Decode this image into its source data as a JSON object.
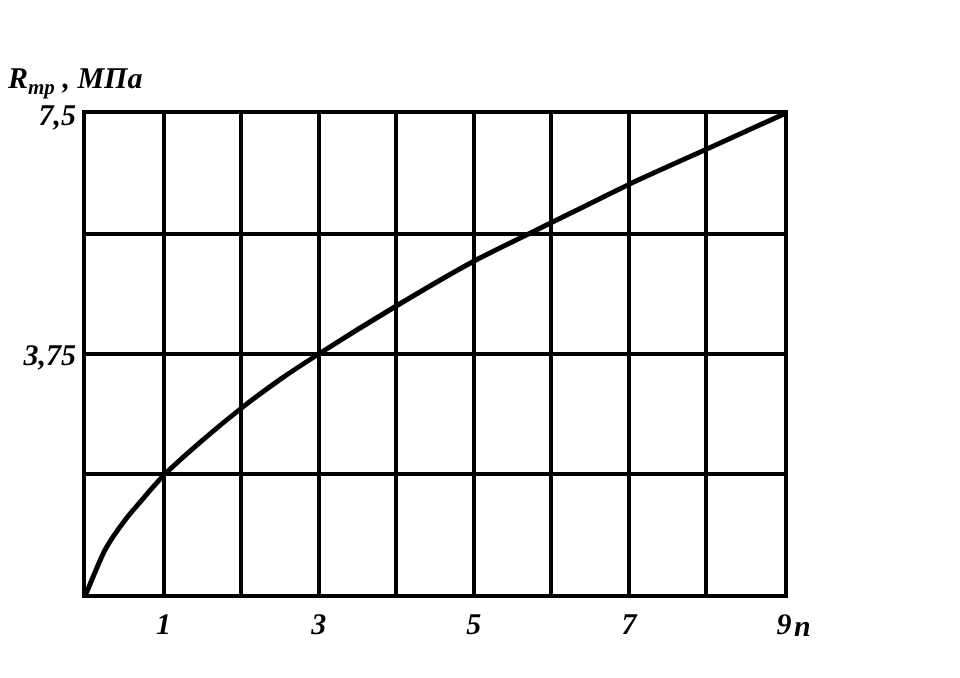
{
  "chart_data": {
    "type": "line",
    "xlabel": "n",
    "ylabel": "R$_{тр}$ , МПа",
    "x": [
      0,
      0.25,
      0.5,
      1,
      1.5,
      2,
      2.5,
      3,
      4,
      5,
      6,
      7,
      8,
      9
    ],
    "series": [
      {
        "color": "#000000",
        "values": [
          0,
          0.7,
          1.15,
          1.85,
          2.4,
          2.9,
          3.35,
          3.75,
          4.5,
          5.2,
          5.8,
          6.4,
          6.95,
          7.5
        ]
      }
    ],
    "xlim": [
      0,
      9
    ],
    "xticks": [
      {
        "value": 0,
        "label": null
      },
      1,
      {
        "value": 2,
        "label": null
      },
      3,
      {
        "value": 4,
        "label": null
      },
      5,
      {
        "value": 6,
        "label": null
      },
      7,
      {
        "value": 8,
        "label": null
      },
      9
    ],
    "ylim": [
      0,
      7.5
    ],
    "yticks": [
      {
        "value": 0,
        "label": null
      },
      {
        "value": 1.875,
        "label": null
      },
      {
        "value": 3.75,
        "label": "3,75"
      },
      {
        "value": 5.625,
        "label": null
      },
      {
        "value": 7.5,
        "label": "7,5"
      }
    ],
    "grid": true,
    "legend": false,
    "marker": "none",
    "line_style": "solid"
  }
}
